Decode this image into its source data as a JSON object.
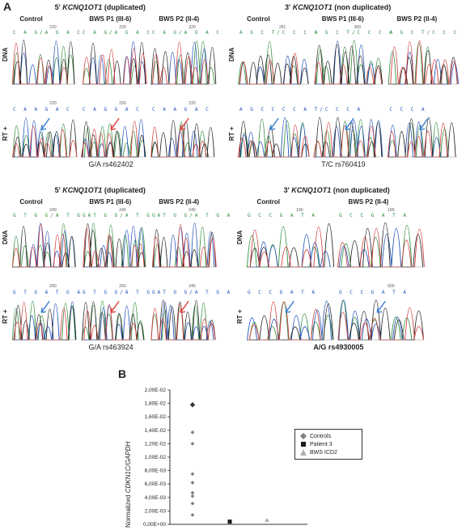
{
  "panel_a": {
    "letter": "A",
    "rows": [
      {
        "left": {
          "title_prefix": "5'",
          "title_gene": "KCNQ1OT1",
          "title_suffix": "(duplicated)",
          "cols": [
            "Control",
            "BWS P1 (III-6)",
            "BWS P2 (II-4)"
          ],
          "dna_seqs": [
            "C A G/A G A C",
            "C A G/A G A C",
            "C A G/A G A C"
          ],
          "dna_pos": [
            "220",
            "220",
            "220"
          ],
          "rt_seqs": [
            "C A A G A C",
            "C A G G A C",
            "C A A G A C"
          ],
          "rt_pos": [
            "220",
            "220",
            "220"
          ],
          "caption": "G/A  rs462402"
        },
        "right": {
          "title_prefix": "3'",
          "title_gene": "KCNQ1OT1",
          "title_suffix": "(non duplicated)",
          "cols": [
            "Control",
            "BWS P1 (III-6)",
            "BWS P2 (II-4)"
          ],
          "dna_seqs": [
            "A G C T/C C C A",
            "A G C T/C C C A",
            "A G C T/C C C"
          ],
          "dna_pos": [
            "261",
            "260",
            ""
          ],
          "rt_seqs": [
            "A G C C C C A",
            "T/C C C A",
            "C C C A"
          ],
          "rt_pos": [
            "",
            "",
            ""
          ],
          "caption": "T/C  rs760419"
        }
      },
      {
        "left": {
          "title_prefix": "5'",
          "title_gene": "KCNQ1OT1",
          "title_suffix": "(duplicated)",
          "cols": [
            "Control",
            "BWS P1 (III-6)",
            "BWS P2 (II-4)"
          ],
          "dna_seqs": [
            "G T G G/A T G A",
            "G T G G/A T G A",
            "G T G G/A T G A"
          ],
          "dna_pos": [
            "240",
            "240",
            "240"
          ],
          "rt_seqs": [
            "G T G A T G A",
            "G T G G/A T G A",
            "G T G G/A T G A"
          ],
          "rt_pos": [
            "260",
            "260",
            "240"
          ],
          "caption": "G/A  rs463924"
        },
        "right": {
          "title_prefix": "3'",
          "title_gene": "KCNQ1OT1",
          "title_suffix": "(non duplicated)",
          "cols": [
            "Control",
            "BWS P2 (II-4)"
          ],
          "dna_seqs": [
            "G C C G A T A",
            "G C C G A T A"
          ],
          "dna_pos": [
            "190",
            "190"
          ],
          "rt_seqs": [
            "G C C G A T A",
            "G C C G A T A"
          ],
          "rt_pos": [
            "",
            "600"
          ],
          "caption": "A/G  rs4930005"
        }
      }
    ],
    "row_labels": {
      "dna": "DNA",
      "rt": "RT +"
    }
  },
  "panel_b": {
    "letter": "B",
    "chart_data": {
      "type": "scatter",
      "ylabel_italic": "CDKN1C/GAPDH",
      "ylabel_prefix": "Normalized",
      "ylim": [
        0,
        0.02
      ],
      "yticks": [
        "2,00E-02",
        "1,80E-02",
        "1,60E-02",
        "1,40E-02",
        "1,20E-02",
        "1,00E-02",
        "8,00E-03",
        "6,00E-03",
        "4,00E-03",
        "2,00E-03",
        "0,00E+00"
      ],
      "ytick_values": [
        0.02,
        0.018,
        0.016,
        0.014,
        0.012,
        0.01,
        0.008,
        0.006,
        0.004,
        0.002,
        0.0
      ],
      "series": [
        {
          "name": "Controls",
          "x": [
            1,
            1,
            1,
            1,
            1,
            1,
            1,
            1,
            1
          ],
          "values": [
            0.0178,
            0.0137,
            0.012,
            0.0075,
            0.0062,
            0.0047,
            0.0042,
            0.0031,
            0.0014
          ],
          "color": "#7f7f7f",
          "marker": "diamond"
        },
        {
          "name": "Patient 3",
          "x": [
            2
          ],
          "values": [
            0.0004
          ],
          "color": "#1a1a1a",
          "marker": "square"
        },
        {
          "name": "BWS ICD2",
          "x": [
            3
          ],
          "values": [
            0.0006
          ],
          "color": "#b0b0b0",
          "marker": "triangle"
        }
      ],
      "legend_position": "right"
    }
  }
}
